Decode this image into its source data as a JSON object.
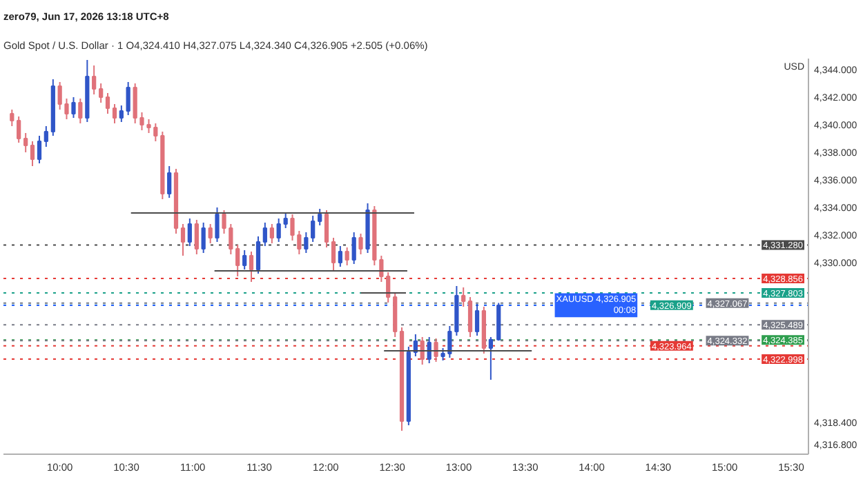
{
  "chart_data": {
    "type": "candlestick",
    "title": "zero79, Jun 17, 2026 13:18 UTC+8",
    "subtitle": "Gold Spot / U.S. Dollar · 1   O4,324.410 H4,327.075 L4,324.340 C4,326.905 +2.505 (+0.06%)",
    "ylabel": "USD",
    "xlim": [
      9.576,
      15.63
    ],
    "xticks": [
      {
        "value": 10,
        "label": "10:00"
      },
      {
        "value": 10.5,
        "label": "10:30"
      },
      {
        "value": 11,
        "label": "11:00"
      },
      {
        "value": 11.5,
        "label": "11:30"
      },
      {
        "value": 12,
        "label": "12:00"
      },
      {
        "value": 12.5,
        "label": "12:30"
      },
      {
        "value": 13,
        "label": "13:00"
      },
      {
        "value": 13.5,
        "label": "13:30"
      },
      {
        "value": 14,
        "label": "14:00"
      },
      {
        "value": 14.5,
        "label": "14:30"
      },
      {
        "value": 15,
        "label": "15:00"
      },
      {
        "value": 15.5,
        "label": "15:30"
      }
    ],
    "ylim": [
      4316.1,
      4344.8
    ],
    "yticks": [
      {
        "value": 4344,
        "label": "4,344.000"
      },
      {
        "value": 4342,
        "label": "4,342.000"
      },
      {
        "value": 4340,
        "label": "4,340.000"
      },
      {
        "value": 4338,
        "label": "4,338.000"
      },
      {
        "value": 4336,
        "label": "4,336.000"
      },
      {
        "value": 4334,
        "label": "4,334.000"
      },
      {
        "value": 4332,
        "label": "4,332.000"
      },
      {
        "value": 4330,
        "label": "4,330.000"
      },
      {
        "value": 4318.4,
        "label": "4,318.400"
      },
      {
        "value": 4316.8,
        "label": "4,316.800"
      }
    ],
    "series": [
      {
        "color": "#3056c8",
        "x": [
          9.846,
          9.897,
          9.949,
          10.103,
          10.206,
          10.463,
          10.514,
          10.823,
          10.977,
          11.08,
          11.183,
          11.389,
          11.492,
          11.543,
          11.646,
          11.698,
          11.852,
          11.903,
          11.955,
          12.109,
          12.212,
          12.315,
          12.623,
          12.675,
          12.778,
          12.881,
          12.932,
          12.984,
          13.138,
          13.241,
          13.3
        ],
        "ohlc": [
          [
            4337.5,
            4339.2,
            4337.2,
            4338.8
          ],
          [
            4338.8,
            4339.9,
            4338.4,
            4339.5
          ],
          [
            4339.5,
            4343.3,
            4339.2,
            4342.8
          ],
          [
            4340.8,
            4342.0,
            4340.5,
            4341.6
          ],
          [
            4340.5,
            4344.7,
            4340.2,
            4343.5
          ],
          [
            4340.5,
            4341.4,
            4340.2,
            4341.0
          ],
          [
            4341.0,
            4343.1,
            4340.7,
            4342.7
          ],
          [
            4335.0,
            4337.0,
            4334.7,
            4336.5
          ],
          [
            4331.5,
            4333.2,
            4331.2,
            4332.8
          ],
          [
            4331.0,
            4332.9,
            4330.7,
            4332.5
          ],
          [
            4331.8,
            4334.0,
            4331.5,
            4333.5
          ],
          [
            4329.8,
            4330.9,
            4329.5,
            4330.5
          ],
          [
            4329.5,
            4331.9,
            4329.2,
            4331.5
          ],
          [
            4331.5,
            4332.9,
            4331.2,
            4332.5
          ],
          [
            4331.8,
            4333.2,
            4331.5,
            4332.8
          ],
          [
            4332.8,
            4333.6,
            4332.5,
            4333.2
          ],
          [
            4331.0,
            4332.2,
            4330.7,
            4331.8
          ],
          [
            4331.8,
            4333.4,
            4331.5,
            4333.0
          ],
          [
            4333.0,
            4333.9,
            4332.7,
            4333.5
          ],
          [
            4330.0,
            4331.2,
            4329.7,
            4330.8
          ],
          [
            4330.2,
            4332.2,
            4329.9,
            4331.8
          ],
          [
            4331.0,
            4334.3,
            4330.7,
            4333.8
          ],
          [
            4318.5,
            4323.9,
            4318.2,
            4323.5
          ],
          [
            4323.5,
            4324.8,
            4323.2,
            4324.3
          ],
          [
            4323.0,
            4324.6,
            4322.7,
            4324.2
          ],
          [
            4323.2,
            4323.8,
            4322.9,
            4323.4
          ],
          [
            4323.4,
            4325.4,
            4323.1,
            4325.0
          ],
          [
            4325.0,
            4328.3,
            4324.7,
            4327.6
          ],
          [
            4325.0,
            4327.0,
            4324.7,
            4326.5
          ],
          [
            4323.8,
            4324.6,
            4321.5,
            4324.41
          ],
          [
            4324.41,
            4327.075,
            4324.34,
            4326.905
          ]
        ]
      },
      {
        "color": "#e0727a",
        "x": [
          9.64,
          9.691,
          9.743,
          9.794,
          10.0,
          10.051,
          10.154,
          10.257,
          10.309,
          10.36,
          10.412,
          10.566,
          10.617,
          10.669,
          10.72,
          10.772,
          10.874,
          10.926,
          11.029,
          11.132,
          11.235,
          11.286,
          11.337,
          11.44,
          11.595,
          11.749,
          11.8,
          12.006,
          12.058,
          12.16,
          12.263,
          12.366,
          12.418,
          12.469,
          12.521,
          12.572,
          12.726,
          12.829,
          13.035,
          13.086,
          13.189
        ],
        "ohlc": [
          [
            4340.8,
            4341.1,
            4339.9,
            4340.3
          ],
          [
            4340.3,
            4340.6,
            4338.7,
            4339.0
          ],
          [
            4339.0,
            4339.4,
            4338.0,
            4338.5
          ],
          [
            4338.5,
            4338.8,
            4337.0,
            4337.5
          ],
          [
            4342.8,
            4343.1,
            4341.1,
            4341.5
          ],
          [
            4341.5,
            4341.9,
            4340.4,
            4340.8
          ],
          [
            4341.6,
            4341.9,
            4340.1,
            4340.5
          ],
          [
            4343.5,
            4344.3,
            4342.2,
            4342.6
          ],
          [
            4342.6,
            4343.0,
            4341.6,
            4342.0
          ],
          [
            4342.0,
            4342.3,
            4340.8,
            4341.2
          ],
          [
            4341.2,
            4341.5,
            4340.1,
            4340.5
          ],
          [
            4342.7,
            4343.0,
            4340.1,
            4340.5
          ],
          [
            4340.5,
            4340.9,
            4339.6,
            4340.0
          ],
          [
            4340.0,
            4340.4,
            4339.4,
            4339.8
          ],
          [
            4339.8,
            4340.1,
            4338.8,
            4339.2
          ],
          [
            4339.2,
            4339.5,
            4334.6,
            4335.0
          ],
          [
            4336.5,
            4336.8,
            4332.1,
            4332.5
          ],
          [
            4332.5,
            4332.8,
            4330.5,
            4331.5
          ],
          [
            4332.8,
            4333.1,
            4330.6,
            4331.0
          ],
          [
            4332.5,
            4332.8,
            4331.4,
            4331.8
          ],
          [
            4333.5,
            4333.8,
            4332.1,
            4332.5
          ],
          [
            4332.5,
            4332.8,
            4330.6,
            4331.0
          ],
          [
            4331.0,
            4331.3,
            4329.0,
            4329.8
          ],
          [
            4330.5,
            4330.8,
            4328.6,
            4329.5
          ],
          [
            4332.5,
            4332.8,
            4331.4,
            4331.8
          ],
          [
            4333.2,
            4333.5,
            4331.6,
            4332.0
          ],
          [
            4332.0,
            4332.3,
            4330.6,
            4331.0
          ],
          [
            4333.5,
            4333.8,
            4331.1,
            4331.5
          ],
          [
            4331.5,
            4331.8,
            4329.4,
            4330.0
          ],
          [
            4330.8,
            4331.1,
            4329.8,
            4330.2
          ],
          [
            4331.8,
            4332.1,
            4330.6,
            4331.0
          ],
          [
            4333.8,
            4334.1,
            4329.8,
            4330.2
          ],
          [
            4330.2,
            4330.5,
            4328.6,
            4329.0
          ],
          [
            4329.0,
            4329.3,
            4327.1,
            4327.5
          ],
          [
            4327.5,
            4327.8,
            4324.6,
            4325.0
          ],
          [
            4325.0,
            4325.3,
            4317.8,
            4318.5
          ],
          [
            4324.3,
            4324.6,
            4322.6,
            4323.0
          ],
          [
            4324.2,
            4324.5,
            4322.8,
            4323.2
          ],
          [
            4327.6,
            4328.2,
            4326.8,
            4327.2
          ],
          [
            4327.2,
            4327.5,
            4324.6,
            4325.0
          ],
          [
            4326.5,
            4326.8,
            4323.4,
            4323.8
          ]
        ]
      },
      {
        "type": "line",
        "color": "#4a4a4a",
        "x": [
          10.535,
          12.665
        ],
        "values": [
          4333.6,
          4333.6
        ]
      },
      {
        "type": "line",
        "color": "#4a4a4a",
        "x": [
          11.163,
          12.613
        ],
        "values": [
          4329.4,
          4329.4
        ]
      },
      {
        "type": "line",
        "color": "#4a4a4a",
        "x": [
          12.263,
          12.603
        ],
        "values": [
          4327.8,
          4327.8
        ]
      },
      {
        "type": "line",
        "color": "#4a4a4a",
        "x": [
          12.438,
          13.549
        ],
        "values": [
          4323.6,
          4323.6
        ]
      }
    ],
    "ref_lines": [
      {
        "axis": "y",
        "value": 4331.28,
        "label": "4,331.280",
        "color": "#4a4a4a",
        "line_style": "dotted"
      },
      {
        "axis": "y",
        "value": 4328.856,
        "label": "4,328.856",
        "color": "#e53935",
        "line_style": "dotted"
      },
      {
        "axis": "y",
        "value": 4327.803,
        "label": "4,327.803",
        "color": "#1aa189",
        "line_style": "dotted"
      },
      {
        "axis": "y",
        "value": 4327.067,
        "label": "4,327.067",
        "color": "#787b86",
        "line_style": "dotted"
      },
      {
        "axis": "y",
        "value": 4326.909,
        "label": "4,326.909",
        "color": "#1aa189",
        "line_style": "dotted"
      },
      {
        "axis": "y",
        "value": 4326.905,
        "label": "XAUUSD 4,326.905\n00:08",
        "color": "#2962ff",
        "line_style": "dotted"
      },
      {
        "axis": "y",
        "value": 4325.489,
        "label": "4,325.489",
        "color": "#787b86",
        "line_style": "dotted"
      },
      {
        "axis": "y",
        "value": 4324.385,
        "label": "4,324.385",
        "color": "#2e9e4e",
        "line_style": "dotted"
      },
      {
        "axis": "y",
        "value": 4324.332,
        "label": "4,324.332",
        "color": "#787b86",
        "line_style": "dotted"
      },
      {
        "axis": "y",
        "value": 4323.964,
        "label": "4,323.964",
        "color": "#e53935",
        "line_style": "dotted"
      },
      {
        "axis": "y",
        "value": 4322.998,
        "label": "4,322.998",
        "color": "#e53935",
        "line_style": "dotted"
      }
    ]
  }
}
